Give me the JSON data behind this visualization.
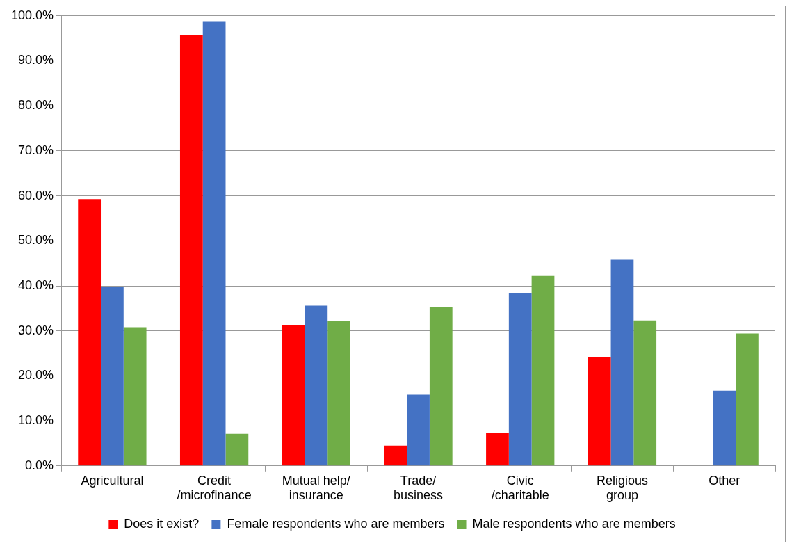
{
  "chart_data": {
    "type": "bar",
    "categories": [
      "Agricultural",
      "Credit\n/microfinance",
      "Mutual help/\ninsurance",
      "Trade/\nbusiness",
      "Civic\n/charitable",
      "Religious\ngroup",
      "Other"
    ],
    "series": [
      {
        "name": "Does it exist?",
        "color": "#ff0000",
        "values": [
          59.3,
          95.7,
          31.3,
          4.5,
          7.3,
          24.1,
          0
        ]
      },
      {
        "name": "Female respondents who are members",
        "color": "#4472c4",
        "values": [
          39.7,
          98.8,
          35.6,
          15.8,
          38.4,
          45.8,
          16.7
        ]
      },
      {
        "name": "Male respondents who are members",
        "color": "#70ad47",
        "values": [
          30.8,
          7.1,
          32.1,
          35.3,
          42.2,
          32.3,
          29.4
        ]
      }
    ],
    "ylim": [
      0,
      100
    ],
    "yticks": [
      {
        "value": 0,
        "label": "0.0%"
      },
      {
        "value": 10,
        "label": "10.0%"
      },
      {
        "value": 20,
        "label": "20.0%"
      },
      {
        "value": 30,
        "label": "30.0%"
      },
      {
        "value": 40,
        "label": "40.0%"
      },
      {
        "value": 50,
        "label": "50.0%"
      },
      {
        "value": 60,
        "label": "60.0%"
      },
      {
        "value": 70,
        "label": "70.0%"
      },
      {
        "value": 80,
        "label": "80.0%"
      },
      {
        "value": 90,
        "label": "90.0%"
      },
      {
        "value": 100,
        "label": "100.0%"
      }
    ],
    "grid": "y",
    "legend": "bottom"
  }
}
